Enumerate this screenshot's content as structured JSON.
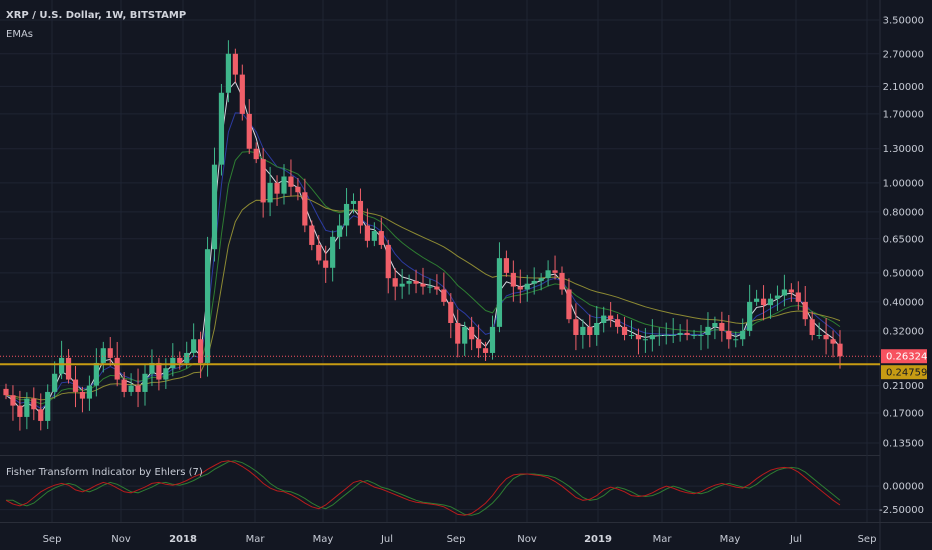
{
  "legend": {
    "symbol": "XRP / U.S. Dollar, 1W, BITSTAMP",
    "indicator": "EMAs"
  },
  "indicator_panel": {
    "title": "Fisher Transform Indicator by Ehlers (7)",
    "ticks": [
      "0.00000",
      "-2.50000"
    ],
    "colors": {
      "fisher": "#b71c1c",
      "trigger": "#2e7d32"
    }
  },
  "price_labels": [
    {
      "text": "0.26324",
      "color": "#f7525f"
    },
    {
      "text": "0.24759",
      "color": "#c69b13"
    }
  ],
  "colors": {
    "background": "#131722",
    "grid": "#1f2433",
    "up": "#3fb68b",
    "down": "#f05f69",
    "ema_fast": "#d8d8e0",
    "ema_mid": "#2c3ba0",
    "ema_slow": "#2e7d32",
    "ema_long": "#8d8a33",
    "hline": "#c69b13"
  },
  "chart_data": {
    "type": "candlestick",
    "title": "XRP / U.S. Dollar, 1W, BITSTAMP",
    "y_scale": "log",
    "y_ticks": [
      "3.50000",
      "2.70000",
      "2.10000",
      "1.70000",
      "1.30000",
      "1.00000",
      "0.80000",
      "0.65000",
      "0.50000",
      "0.40000",
      "0.32000",
      "0.21000",
      "0.17000",
      "0.13500"
    ],
    "y_tick_values": [
      3.5,
      2.7,
      2.1,
      1.7,
      1.3,
      1.0,
      0.8,
      0.65,
      0.5,
      0.4,
      0.32,
      0.21,
      0.17,
      0.135
    ],
    "x_ticks": [
      "Sep",
      "Nov",
      "2018",
      "Mar",
      "May",
      "Jul",
      "Sep",
      "Nov",
      "2019",
      "Mar",
      "May",
      "Jul",
      "Sep"
    ],
    "horizontal_lines": [
      {
        "value": 0.26324,
        "style": "dotted",
        "color": "#f7525f"
      },
      {
        "value": 0.24759,
        "style": "solid",
        "color": "#c69b13"
      }
    ],
    "closes": [
      0.195,
      0.18,
      0.165,
      0.19,
      0.175,
      0.16,
      0.2,
      0.23,
      0.26,
      0.22,
      0.2,
      0.19,
      0.21,
      0.25,
      0.28,
      0.26,
      0.22,
      0.2,
      0.21,
      0.2,
      0.23,
      0.25,
      0.22,
      0.24,
      0.26,
      0.25,
      0.27,
      0.3,
      0.25,
      0.6,
      1.15,
      2.0,
      2.7,
      2.3,
      1.7,
      1.3,
      1.2,
      0.86,
      1.0,
      0.92,
      1.05,
      0.97,
      0.93,
      0.72,
      0.62,
      0.55,
      0.52,
      0.66,
      0.72,
      0.85,
      0.87,
      0.72,
      0.64,
      0.69,
      0.62,
      0.48,
      0.45,
      0.46,
      0.47,
      0.46,
      0.45,
      0.45,
      0.44,
      0.4,
      0.34,
      0.29,
      0.33,
      0.3,
      0.28,
      0.27,
      0.33,
      0.56,
      0.5,
      0.45,
      0.44,
      0.46,
      0.47,
      0.48,
      0.51,
      0.5,
      0.44,
      0.35,
      0.31,
      0.33,
      0.31,
      0.34,
      0.36,
      0.35,
      0.33,
      0.31,
      0.31,
      0.3,
      0.3,
      0.31,
      0.31,
      0.31,
      0.31,
      0.315,
      0.31,
      0.31,
      0.31,
      0.33,
      0.34,
      0.32,
      0.3,
      0.3,
      0.32,
      0.4,
      0.41,
      0.39,
      0.41,
      0.42,
      0.44,
      0.43,
      0.4,
      0.35,
      0.31,
      0.31,
      0.3,
      0.29,
      0.263
    ],
    "fisher": [
      -1.5,
      -1.9,
      -2.1,
      -1.8,
      -1.2,
      -0.6,
      -0.2,
      0.1,
      0.3,
      0.1,
      -0.4,
      -0.6,
      -0.3,
      0.1,
      0.4,
      0.2,
      -0.2,
      -0.6,
      -0.7,
      -0.4,
      -0.1,
      0.3,
      0.4,
      0.2,
      0.1,
      0.3,
      0.6,
      1.0,
      1.3,
      1.8,
      2.2,
      2.6,
      2.7,
      2.5,
      2.1,
      1.6,
      1.0,
      0.3,
      -0.2,
      -0.5,
      -0.6,
      -0.9,
      -1.3,
      -1.8,
      -2.2,
      -2.4,
      -2.0,
      -1.4,
      -0.8,
      -0.2,
      0.4,
      0.6,
      0.3,
      -0.1,
      -0.3,
      -0.6,
      -0.9,
      -1.2,
      -1.5,
      -1.7,
      -1.8,
      -1.9,
      -2.0,
      -2.2,
      -2.6,
      -3.0,
      -3.1,
      -2.9,
      -2.4,
      -1.8,
      -1.0,
      0.0,
      0.8,
      1.2,
      1.3,
      1.3,
      1.2,
      1.1,
      0.9,
      0.5,
      0.0,
      -0.6,
      -1.2,
      -1.5,
      -1.4,
      -1.0,
      -0.4,
      -0.1,
      -0.3,
      -0.6,
      -1.0,
      -1.1,
      -1.0,
      -0.7,
      -0.3,
      0.0,
      -0.2,
      -0.5,
      -0.7,
      -0.8,
      -0.6,
      -0.2,
      0.1,
      0.3,
      0.1,
      -0.1,
      -0.2,
      0.2,
      0.8,
      1.3,
      1.7,
      1.9,
      2.0,
      1.9,
      1.5,
      0.9,
      0.3,
      -0.3,
      -0.9,
      -1.5,
      -2.0
    ]
  }
}
